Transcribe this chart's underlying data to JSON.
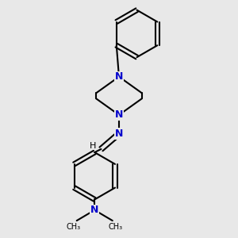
{
  "bg_color": "#e8e8e8",
  "bond_color": "#000000",
  "N_color": "#0000cc",
  "line_width": 1.5,
  "font_size_N": 9,
  "font_size_H": 8,
  "font_size_me": 8,
  "fig_size": [
    3.0,
    3.0
  ],
  "dpi": 100,
  "xlim": [
    0.3,
    2.7
  ],
  "ylim": [
    0.05,
    2.95
  ]
}
